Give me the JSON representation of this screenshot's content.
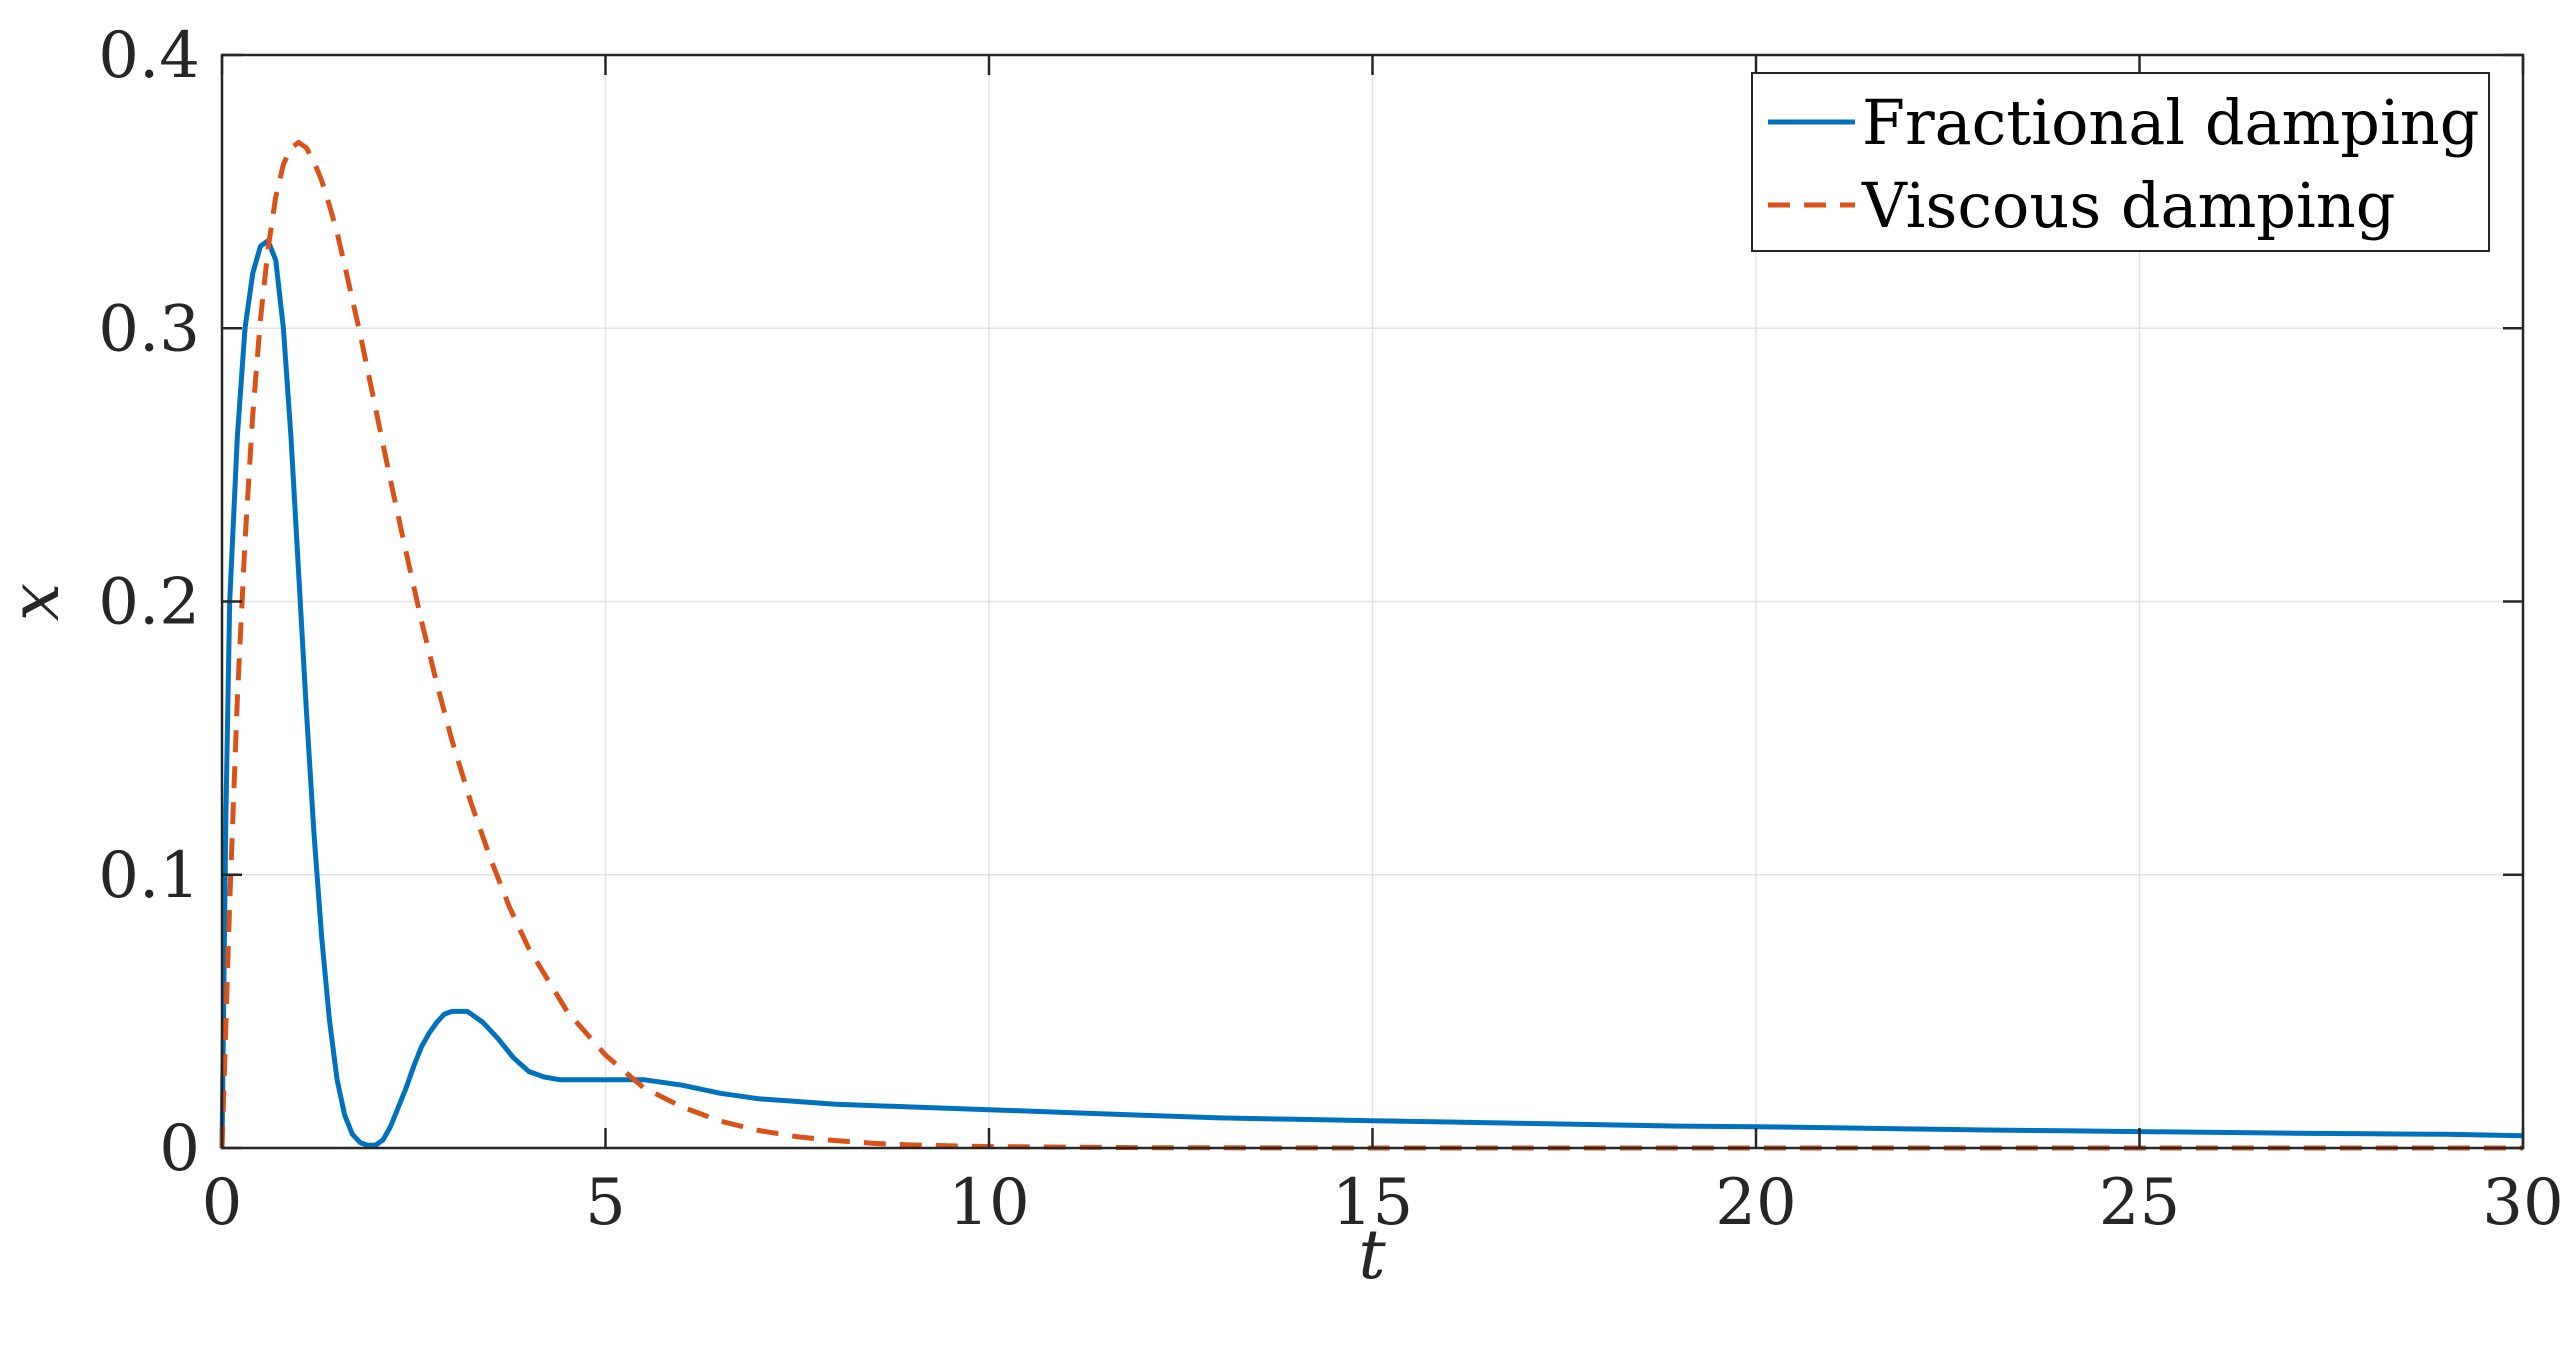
{
  "chart_data": {
    "type": "line",
    "title": "",
    "xlabel": "t",
    "ylabel": "x",
    "xlim": [
      0,
      30
    ],
    "ylim": [
      0,
      0.4
    ],
    "xticks": [
      0,
      5,
      10,
      15,
      20,
      25,
      30
    ],
    "yticks": [
      0,
      0.1,
      0.2,
      0.3,
      0.4
    ],
    "xtick_labels": [
      "0",
      "5",
      "10",
      "15",
      "20",
      "25",
      "30"
    ],
    "ytick_labels": [
      "0",
      "0.1",
      "0.2",
      "0.3",
      "0.4"
    ],
    "grid": true,
    "legend_position": "top-right",
    "series": [
      {
        "name": "Fractional damping",
        "color": "#0072BD",
        "style": "solid",
        "x": [
          0,
          0.05,
          0.1,
          0.2,
          0.3,
          0.4,
          0.5,
          0.6,
          0.7,
          0.8,
          0.9,
          1.0,
          1.1,
          1.2,
          1.3,
          1.4,
          1.5,
          1.6,
          1.7,
          1.8,
          1.9,
          2.0,
          2.1,
          2.2,
          2.3,
          2.4,
          2.5,
          2.6,
          2.7,
          2.8,
          2.9,
          3.0,
          3.2,
          3.4,
          3.6,
          3.8,
          4.0,
          4.2,
          4.4,
          4.6,
          4.8,
          5.0,
          5.5,
          6.0,
          6.5,
          7.0,
          7.5,
          8.0,
          9.0,
          10.0,
          11.0,
          12.0,
          13.0,
          14.0,
          15.0,
          16.0,
          17.0,
          18.0,
          19.0,
          20.0,
          21.0,
          22.0,
          23.0,
          24.0,
          25.0,
          26.0,
          27.0,
          28.0,
          29.0,
          30.0
        ],
        "y": [
          0,
          0.12,
          0.2,
          0.26,
          0.3,
          0.32,
          0.33,
          0.332,
          0.325,
          0.3,
          0.26,
          0.21,
          0.16,
          0.115,
          0.077,
          0.047,
          0.025,
          0.012,
          0.005,
          0.002,
          0.001,
          0.001,
          0.003,
          0.008,
          0.015,
          0.022,
          0.03,
          0.037,
          0.042,
          0.046,
          0.049,
          0.05,
          0.05,
          0.046,
          0.04,
          0.033,
          0.028,
          0.026,
          0.025,
          0.025,
          0.025,
          0.025,
          0.025,
          0.023,
          0.02,
          0.018,
          0.017,
          0.016,
          0.015,
          0.014,
          0.013,
          0.012,
          0.011,
          0.0105,
          0.01,
          0.0095,
          0.009,
          0.0085,
          0.008,
          0.0078,
          0.0074,
          0.007,
          0.0066,
          0.0063,
          0.006,
          0.0057,
          0.0054,
          0.0052,
          0.005,
          0.0045
        ]
      },
      {
        "name": "Viscous damping",
        "color": "#D95319",
        "style": "dashed",
        "x": [
          0,
          0.1,
          0.2,
          0.3,
          0.4,
          0.5,
          0.6,
          0.7,
          0.8,
          0.9,
          1.0,
          1.1,
          1.2,
          1.3,
          1.4,
          1.5,
          1.6,
          1.8,
          2.0,
          2.2,
          2.4,
          2.6,
          2.8,
          3.0,
          3.25,
          3.5,
          3.75,
          4.0,
          4.5,
          5.0,
          5.5,
          6.0,
          6.5,
          7.0,
          7.5,
          8.0,
          8.5,
          9.0,
          10.0,
          12.0,
          15.0,
          20.0,
          25.0,
          30.0
        ],
        "y": [
          0,
          0.09,
          0.164,
          0.222,
          0.268,
          0.303,
          0.329,
          0.348,
          0.36,
          0.366,
          0.368,
          0.366,
          0.361,
          0.354,
          0.345,
          0.335,
          0.323,
          0.298,
          0.271,
          0.244,
          0.218,
          0.193,
          0.17,
          0.149,
          0.126,
          0.106,
          0.088,
          0.073,
          0.05,
          0.034,
          0.022,
          0.015,
          0.0098,
          0.0064,
          0.0041,
          0.0027,
          0.0017,
          0.0011,
          0.0005,
          0.0001,
          0,
          0,
          0,
          0
        ]
      }
    ]
  }
}
